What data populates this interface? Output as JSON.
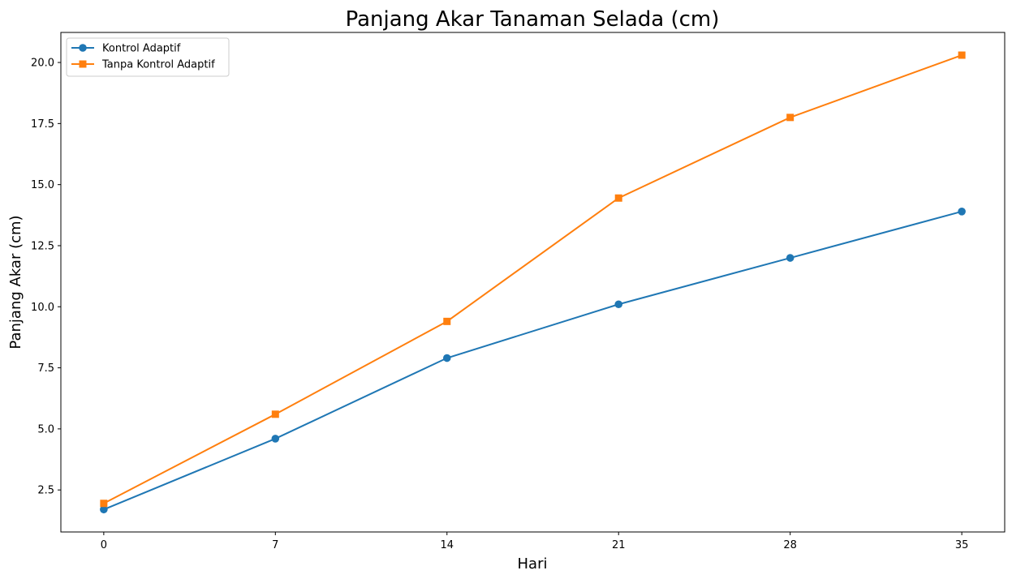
{
  "chart_data": {
    "type": "line",
    "title": "Panjang Akar Tanaman Selada (cm)",
    "xlabel": "Hari",
    "ylabel": "Panjang Akar (cm)",
    "x": [
      0,
      7,
      14,
      21,
      28,
      35
    ],
    "xticks": [
      "0",
      "7",
      "14",
      "21",
      "28",
      "35"
    ],
    "yticks": [
      "2.5",
      "5.0",
      "7.5",
      "10.0",
      "12.5",
      "15.0",
      "17.5",
      "20.0"
    ],
    "xlim": [
      -1.75,
      36.75
    ],
    "ylim": [
      0.78,
      21.23
    ],
    "grid": false,
    "legend_position": "top-left",
    "series": [
      {
        "name": "Kontrol Adaptif",
        "color": "#1f77b4",
        "marker": "circle",
        "values": [
          1.7,
          4.6,
          7.9,
          10.1,
          12.0,
          13.9
        ]
      },
      {
        "name": "Tanpa Kontrol Adaptif",
        "color": "#ff7f0e",
        "marker": "square",
        "values": [
          1.95,
          5.6,
          9.4,
          14.45,
          17.75,
          20.3
        ]
      }
    ]
  }
}
